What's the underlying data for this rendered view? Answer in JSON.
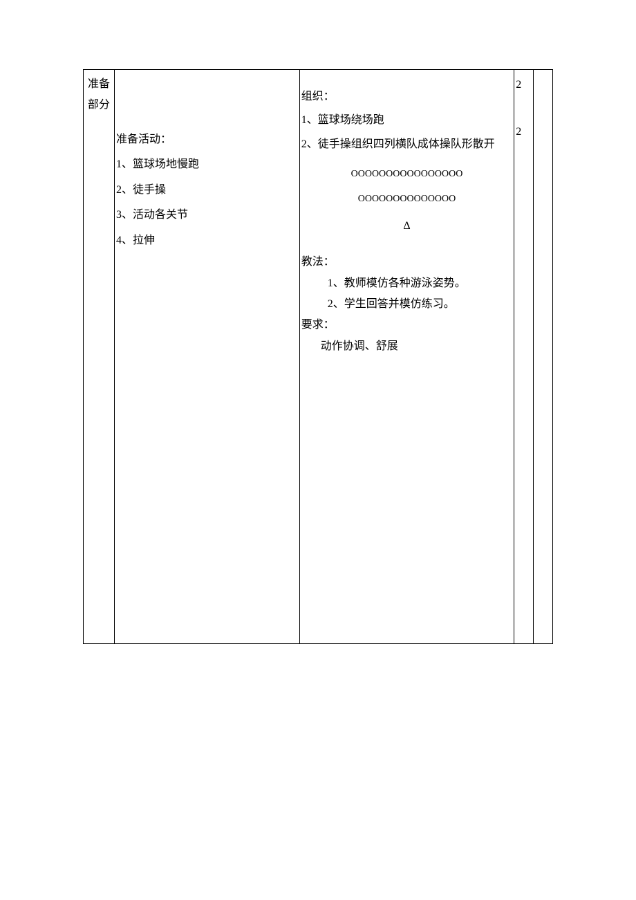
{
  "section": {
    "label_line1": "准备",
    "label_line2": "部分"
  },
  "activity": {
    "title": "准备活动：",
    "items": {
      "i1": "1、篮球场地慢跑",
      "i2": "2、徒手操",
      "i3": "3、活动各关节",
      "i4": "4、拉伸"
    }
  },
  "organization": {
    "title": "组织：",
    "line1": "1、篮球场绕场跑",
    "line2": "2、徒手操组织四列横队成体操队形散开",
    "formation_row1": "OOOOOOOOOOOOOOOO",
    "formation_row2": "OOOOOOOOOOOOOO",
    "triangle": "Δ",
    "teach_title": "教法：",
    "teach_item1": "1、教师模仿各种游泳姿势。",
    "teach_item2": "2、学生回答并模仿练习。",
    "req_title": "要求：",
    "req_item": "动作协调、舒展"
  },
  "numbers": {
    "n1": "2",
    "n2": "2"
  },
  "style": {
    "border_color": "#000000",
    "background": "#ffffff",
    "font_size_body": 16,
    "font_size_formation": 14,
    "font_family": "SimSun"
  }
}
